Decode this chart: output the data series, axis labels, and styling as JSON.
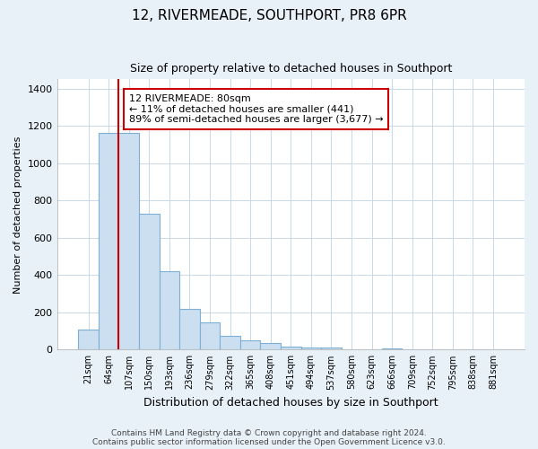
{
  "title": "12, RIVERMEADE, SOUTHPORT, PR8 6PR",
  "subtitle": "Size of property relative to detached houses in Southport",
  "xlabel": "Distribution of detached houses by size in Southport",
  "ylabel": "Number of detached properties",
  "bar_labels": [
    "21sqm",
    "64sqm",
    "107sqm",
    "150sqm",
    "193sqm",
    "236sqm",
    "279sqm",
    "322sqm",
    "365sqm",
    "408sqm",
    "451sqm",
    "494sqm",
    "537sqm",
    "580sqm",
    "623sqm",
    "666sqm",
    "709sqm",
    "752sqm",
    "795sqm",
    "838sqm",
    "881sqm"
  ],
  "bar_values": [
    107,
    1163,
    1163,
    730,
    420,
    220,
    148,
    73,
    50,
    35,
    15,
    10,
    10,
    0,
    0,
    5,
    0,
    0,
    0,
    0,
    0
  ],
  "bar_color": "#ccdff0",
  "bar_edge_color": "#7bafd4",
  "vline_color": "#cc0000",
  "vline_x": 1.5,
  "annotation_text": "12 RIVERMEADE: 80sqm\n← 11% of detached houses are smaller (441)\n89% of semi-detached houses are larger (3,677) →",
  "annotation_box_color": "#ffffff",
  "annotation_box_edge": "#cc0000",
  "ylim": [
    0,
    1450
  ],
  "yticks": [
    0,
    200,
    400,
    600,
    800,
    1000,
    1200,
    1400
  ],
  "footer_line1": "Contains HM Land Registry data © Crown copyright and database right 2024.",
  "footer_line2": "Contains public sector information licensed under the Open Government Licence v3.0.",
  "background_color": "#e8f0f8",
  "plot_background": "#ffffff",
  "grid_color": "#c8d8e8"
}
